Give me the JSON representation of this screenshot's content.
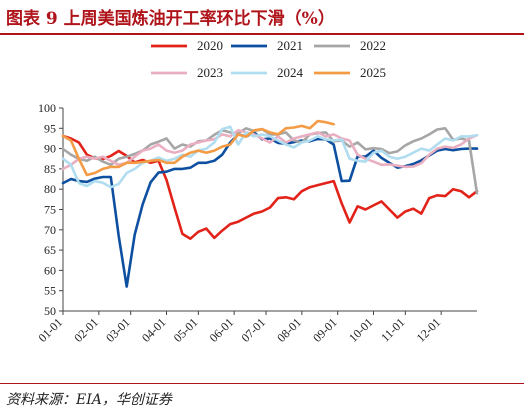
{
  "title": "图表 9   上周美国炼油开工率环比下滑（%）",
  "source": "资料来源：EIA，华创证券",
  "chart_data": {
    "type": "line",
    "xlabel": "",
    "ylabel": "",
    "ylim": [
      50,
      100
    ],
    "yticks": [
      50,
      55,
      60,
      65,
      70,
      75,
      80,
      85,
      90,
      95,
      100
    ],
    "xlim": [
      1,
      52
    ],
    "x_tick_labels": [
      "01-01",
      "02-01",
      "03-01",
      "04-01",
      "05-01",
      "06-01",
      "07-01",
      "08-01",
      "09-01",
      "10-01",
      "11-01",
      "12-01"
    ],
    "x_tick_weeks": [
      1,
      5.5,
      9.5,
      14,
      18,
      22.5,
      26.5,
      31,
      35.5,
      40,
      44,
      48.5
    ],
    "grid": false,
    "legend_position": "top",
    "series": [
      {
        "name": "2020",
        "color": "#e2231a",
        "points": [
          [
            1,
            93.1
          ],
          [
            2,
            92.5
          ],
          [
            3,
            91.5
          ],
          [
            4,
            88.5
          ],
          [
            5,
            87.6
          ],
          [
            6,
            87.4
          ],
          [
            7,
            88.2
          ],
          [
            8,
            89.4
          ],
          [
            9,
            88.2
          ],
          [
            10,
            86.6
          ],
          [
            11,
            87.2
          ],
          [
            12,
            86.5
          ],
          [
            13,
            87.0
          ],
          [
            14,
            82.3
          ],
          [
            15,
            75.5
          ],
          [
            16,
            69.0
          ],
          [
            17,
            67.8
          ],
          [
            18,
            69.5
          ],
          [
            19,
            70.3
          ],
          [
            20,
            68.0
          ],
          [
            21,
            69.8
          ],
          [
            22,
            71.4
          ],
          [
            23,
            72.0
          ],
          [
            24,
            73.0
          ],
          [
            25,
            74.0
          ],
          [
            26,
            74.5
          ],
          [
            27,
            75.5
          ],
          [
            28,
            77.8
          ],
          [
            29,
            78.0
          ],
          [
            30,
            77.5
          ],
          [
            31,
            79.5
          ],
          [
            32,
            80.5
          ],
          [
            33,
            81.0
          ],
          [
            34,
            81.5
          ],
          [
            35,
            82.0
          ],
          [
            36,
            76.5
          ],
          [
            37,
            71.8
          ],
          [
            38,
            75.8
          ],
          [
            39,
            75.0
          ],
          [
            40,
            76.0
          ],
          [
            41,
            77.0
          ],
          [
            42,
            75.0
          ],
          [
            43,
            73.0
          ],
          [
            44,
            74.5
          ],
          [
            45,
            75.2
          ],
          [
            46,
            74.0
          ],
          [
            47,
            77.8
          ],
          [
            48,
            78.5
          ],
          [
            49,
            78.3
          ],
          [
            50,
            80.0
          ],
          [
            51,
            79.5
          ],
          [
            52,
            78.0
          ],
          [
            53,
            79.5
          ]
        ]
      },
      {
        "name": "2021",
        "color": "#0d4fa0",
        "points": [
          [
            1,
            81.5
          ],
          [
            2,
            82.5
          ],
          [
            3,
            82.0
          ],
          [
            4,
            81.8
          ],
          [
            5,
            82.6
          ],
          [
            6,
            83.0
          ],
          [
            7,
            83.0
          ],
          [
            8,
            68.5
          ],
          [
            9,
            56.0
          ],
          [
            10,
            68.8
          ],
          [
            11,
            76.2
          ],
          [
            12,
            81.7
          ],
          [
            13,
            84.1
          ],
          [
            14,
            84.3
          ],
          [
            15,
            85.0
          ],
          [
            16,
            85.0
          ],
          [
            17,
            85.3
          ],
          [
            18,
            86.5
          ],
          [
            19,
            86.5
          ],
          [
            20,
            87.0
          ],
          [
            21,
            88.5
          ],
          [
            22,
            91.5
          ],
          [
            23,
            93.5
          ],
          [
            24,
            93.0
          ],
          [
            25,
            94.0
          ],
          [
            26,
            92.3
          ],
          [
            27,
            92.5
          ],
          [
            28,
            91.4
          ],
          [
            29,
            91.2
          ],
          [
            30,
            91.6
          ],
          [
            31,
            92.0
          ],
          [
            32,
            91.8
          ],
          [
            33,
            92.4
          ],
          [
            34,
            92.3
          ],
          [
            35,
            91.0
          ],
          [
            36,
            82.0
          ],
          [
            37,
            82.1
          ],
          [
            38,
            88.1
          ],
          [
            39,
            88.0
          ],
          [
            40,
            89.5
          ],
          [
            41,
            87.7
          ],
          [
            42,
            86.5
          ],
          [
            43,
            85.3
          ],
          [
            44,
            85.7
          ],
          [
            45,
            86.2
          ],
          [
            46,
            87.1
          ],
          [
            47,
            88.3
          ],
          [
            48,
            89.5
          ],
          [
            49,
            89.9
          ],
          [
            50,
            89.6
          ],
          [
            51,
            89.9
          ],
          [
            52,
            90.0
          ],
          [
            53,
            90.0
          ]
        ]
      },
      {
        "name": "2022",
        "color": "#a6a6a6",
        "points": [
          [
            1,
            89.9
          ],
          [
            2,
            88.5
          ],
          [
            3,
            87.5
          ],
          [
            4,
            87.0
          ],
          [
            5,
            88.0
          ],
          [
            6,
            86.8
          ],
          [
            7,
            86.0
          ],
          [
            8,
            87.5
          ],
          [
            9,
            88.0
          ],
          [
            10,
            88.7
          ],
          [
            11,
            89.5
          ],
          [
            12,
            91.0
          ],
          [
            13,
            91.7
          ],
          [
            14,
            92.5
          ],
          [
            15,
            90.0
          ],
          [
            16,
            91.0
          ],
          [
            17,
            90.5
          ],
          [
            18,
            91.8
          ],
          [
            19,
            92.0
          ],
          [
            20,
            93.4
          ],
          [
            21,
            94.5
          ],
          [
            22,
            94.0
          ],
          [
            23,
            93.8
          ],
          [
            24,
            95.0
          ],
          [
            25,
            94.3
          ],
          [
            26,
            94.8
          ],
          [
            27,
            93.5
          ],
          [
            28,
            93.5
          ],
          [
            29,
            94.0
          ],
          [
            30,
            92.0
          ],
          [
            31,
            91.5
          ],
          [
            32,
            93.5
          ],
          [
            33,
            93.8
          ],
          [
            34,
            94.0
          ],
          [
            35,
            91.8
          ],
          [
            36,
            92.0
          ],
          [
            37,
            90.5
          ],
          [
            38,
            91.5
          ],
          [
            39,
            89.8
          ],
          [
            40,
            90.1
          ],
          [
            41,
            89.9
          ],
          [
            42,
            88.9
          ],
          [
            43,
            89.3
          ],
          [
            44,
            90.8
          ],
          [
            45,
            91.8
          ],
          [
            46,
            92.5
          ],
          [
            47,
            93.5
          ],
          [
            48,
            94.7
          ],
          [
            49,
            95.0
          ],
          [
            50,
            92.2
          ],
          [
            51,
            92.5
          ],
          [
            52,
            92.0
          ],
          [
            53,
            79.0
          ]
        ]
      },
      {
        "name": "2023",
        "color": "#e9afc0",
        "points": [
          [
            1,
            85.0
          ],
          [
            2,
            86.0
          ],
          [
            3,
            87.5
          ],
          [
            4,
            88.0
          ],
          [
            5,
            87.5
          ],
          [
            6,
            88.0
          ],
          [
            7,
            87.0
          ],
          [
            8,
            86.0
          ],
          [
            9,
            86.5
          ],
          [
            10,
            88.0
          ],
          [
            11,
            89.5
          ],
          [
            12,
            90.0
          ],
          [
            13,
            91.0
          ],
          [
            14,
            89.5
          ],
          [
            15,
            89.0
          ],
          [
            16,
            89.5
          ],
          [
            17,
            91.0
          ],
          [
            18,
            91.5
          ],
          [
            19,
            92.0
          ],
          [
            20,
            92.3
          ],
          [
            21,
            93.5
          ],
          [
            22,
            93.0
          ],
          [
            23,
            94.5
          ],
          [
            24,
            94.0
          ],
          [
            25,
            93.5
          ],
          [
            26,
            92.5
          ],
          [
            27,
            91.5
          ],
          [
            28,
            93.0
          ],
          [
            29,
            91.5
          ],
          [
            30,
            92.5
          ],
          [
            31,
            93.0
          ],
          [
            32,
            93.5
          ],
          [
            33,
            94.0
          ],
          [
            34,
            93.0
          ],
          [
            35,
            93.5
          ],
          [
            36,
            92.5
          ],
          [
            37,
            92.0
          ],
          [
            38,
            88.5
          ],
          [
            39,
            87.5
          ],
          [
            40,
            86.8
          ],
          [
            41,
            86.0
          ],
          [
            42,
            86.1
          ],
          [
            43,
            85.8
          ],
          [
            44,
            85.5
          ],
          [
            45,
            85.6
          ],
          [
            46,
            86.4
          ],
          [
            47,
            88.5
          ],
          [
            48,
            90.0
          ],
          [
            49,
            90.5
          ],
          [
            50,
            90.2
          ],
          [
            51,
            91.0
          ],
          [
            52,
            92.5
          ],
          [
            53,
            93.3
          ]
        ]
      },
      {
        "name": "2024",
        "color": "#b0ddef",
        "points": [
          [
            1,
            87.5
          ],
          [
            2,
            86.0
          ],
          [
            3,
            81.5
          ],
          [
            4,
            80.8
          ],
          [
            5,
            82.0
          ],
          [
            6,
            81.6
          ],
          [
            7,
            80.5
          ],
          [
            8,
            81.3
          ],
          [
            9,
            84.0
          ],
          [
            10,
            85.0
          ],
          [
            11,
            86.5
          ],
          [
            12,
            87.0
          ],
          [
            13,
            87.8
          ],
          [
            14,
            87.0
          ],
          [
            15,
            87.5
          ],
          [
            16,
            88.5
          ],
          [
            17,
            88.0
          ],
          [
            18,
            89.5
          ],
          [
            19,
            90.0
          ],
          [
            20,
            91.5
          ],
          [
            21,
            94.8
          ],
          [
            22,
            95.4
          ],
          [
            23,
            91.0
          ],
          [
            24,
            94.0
          ],
          [
            25,
            93.0
          ],
          [
            26,
            93.5
          ],
          [
            27,
            93.0
          ],
          [
            28,
            92.0
          ],
          [
            29,
            91.0
          ],
          [
            30,
            90.3
          ],
          [
            31,
            91.5
          ],
          [
            32,
            92.0
          ],
          [
            33,
            93.0
          ],
          [
            34,
            92.3
          ],
          [
            35,
            92.0
          ],
          [
            36,
            92.3
          ],
          [
            37,
            87.5
          ],
          [
            38,
            87.0
          ],
          [
            39,
            86.8
          ],
          [
            40,
            89.0
          ],
          [
            41,
            89.5
          ],
          [
            42,
            88.0
          ],
          [
            43,
            87.5
          ],
          [
            44,
            88.0
          ],
          [
            45,
            89.0
          ],
          [
            46,
            90.0
          ],
          [
            47,
            89.5
          ],
          [
            48,
            91.0
          ],
          [
            49,
            92.5
          ],
          [
            50,
            92.0
          ],
          [
            51,
            93.0
          ],
          [
            52,
            93.0
          ],
          [
            53,
            93.3
          ]
        ]
      },
      {
        "name": "2025",
        "color": "#f39b45",
        "points": [
          [
            1,
            93.1
          ],
          [
            2,
            92.0
          ],
          [
            3,
            87.5
          ],
          [
            4,
            83.5
          ],
          [
            5,
            84.0
          ],
          [
            6,
            85.0
          ],
          [
            7,
            85.5
          ],
          [
            8,
            85.5
          ],
          [
            9,
            86.5
          ],
          [
            10,
            86.5
          ],
          [
            11,
            86.7
          ],
          [
            12,
            87.0
          ],
          [
            13,
            87.2
          ],
          [
            14,
            86.5
          ],
          [
            15,
            86.5
          ],
          [
            16,
            88.0
          ],
          [
            17,
            89.0
          ],
          [
            18,
            89.5
          ],
          [
            19,
            89.0
          ],
          [
            20,
            89.5
          ],
          [
            21,
            90.5
          ],
          [
            22,
            91.0
          ],
          [
            23,
            93.5
          ],
          [
            24,
            92.9
          ],
          [
            25,
            94.5
          ],
          [
            26,
            94.8
          ],
          [
            27,
            94.0
          ],
          [
            28,
            93.5
          ],
          [
            29,
            95.0
          ],
          [
            30,
            95.2
          ],
          [
            31,
            95.6
          ],
          [
            32,
            95.0
          ],
          [
            33,
            96.8
          ],
          [
            34,
            96.5
          ],
          [
            35,
            96.0
          ]
        ]
      }
    ]
  }
}
